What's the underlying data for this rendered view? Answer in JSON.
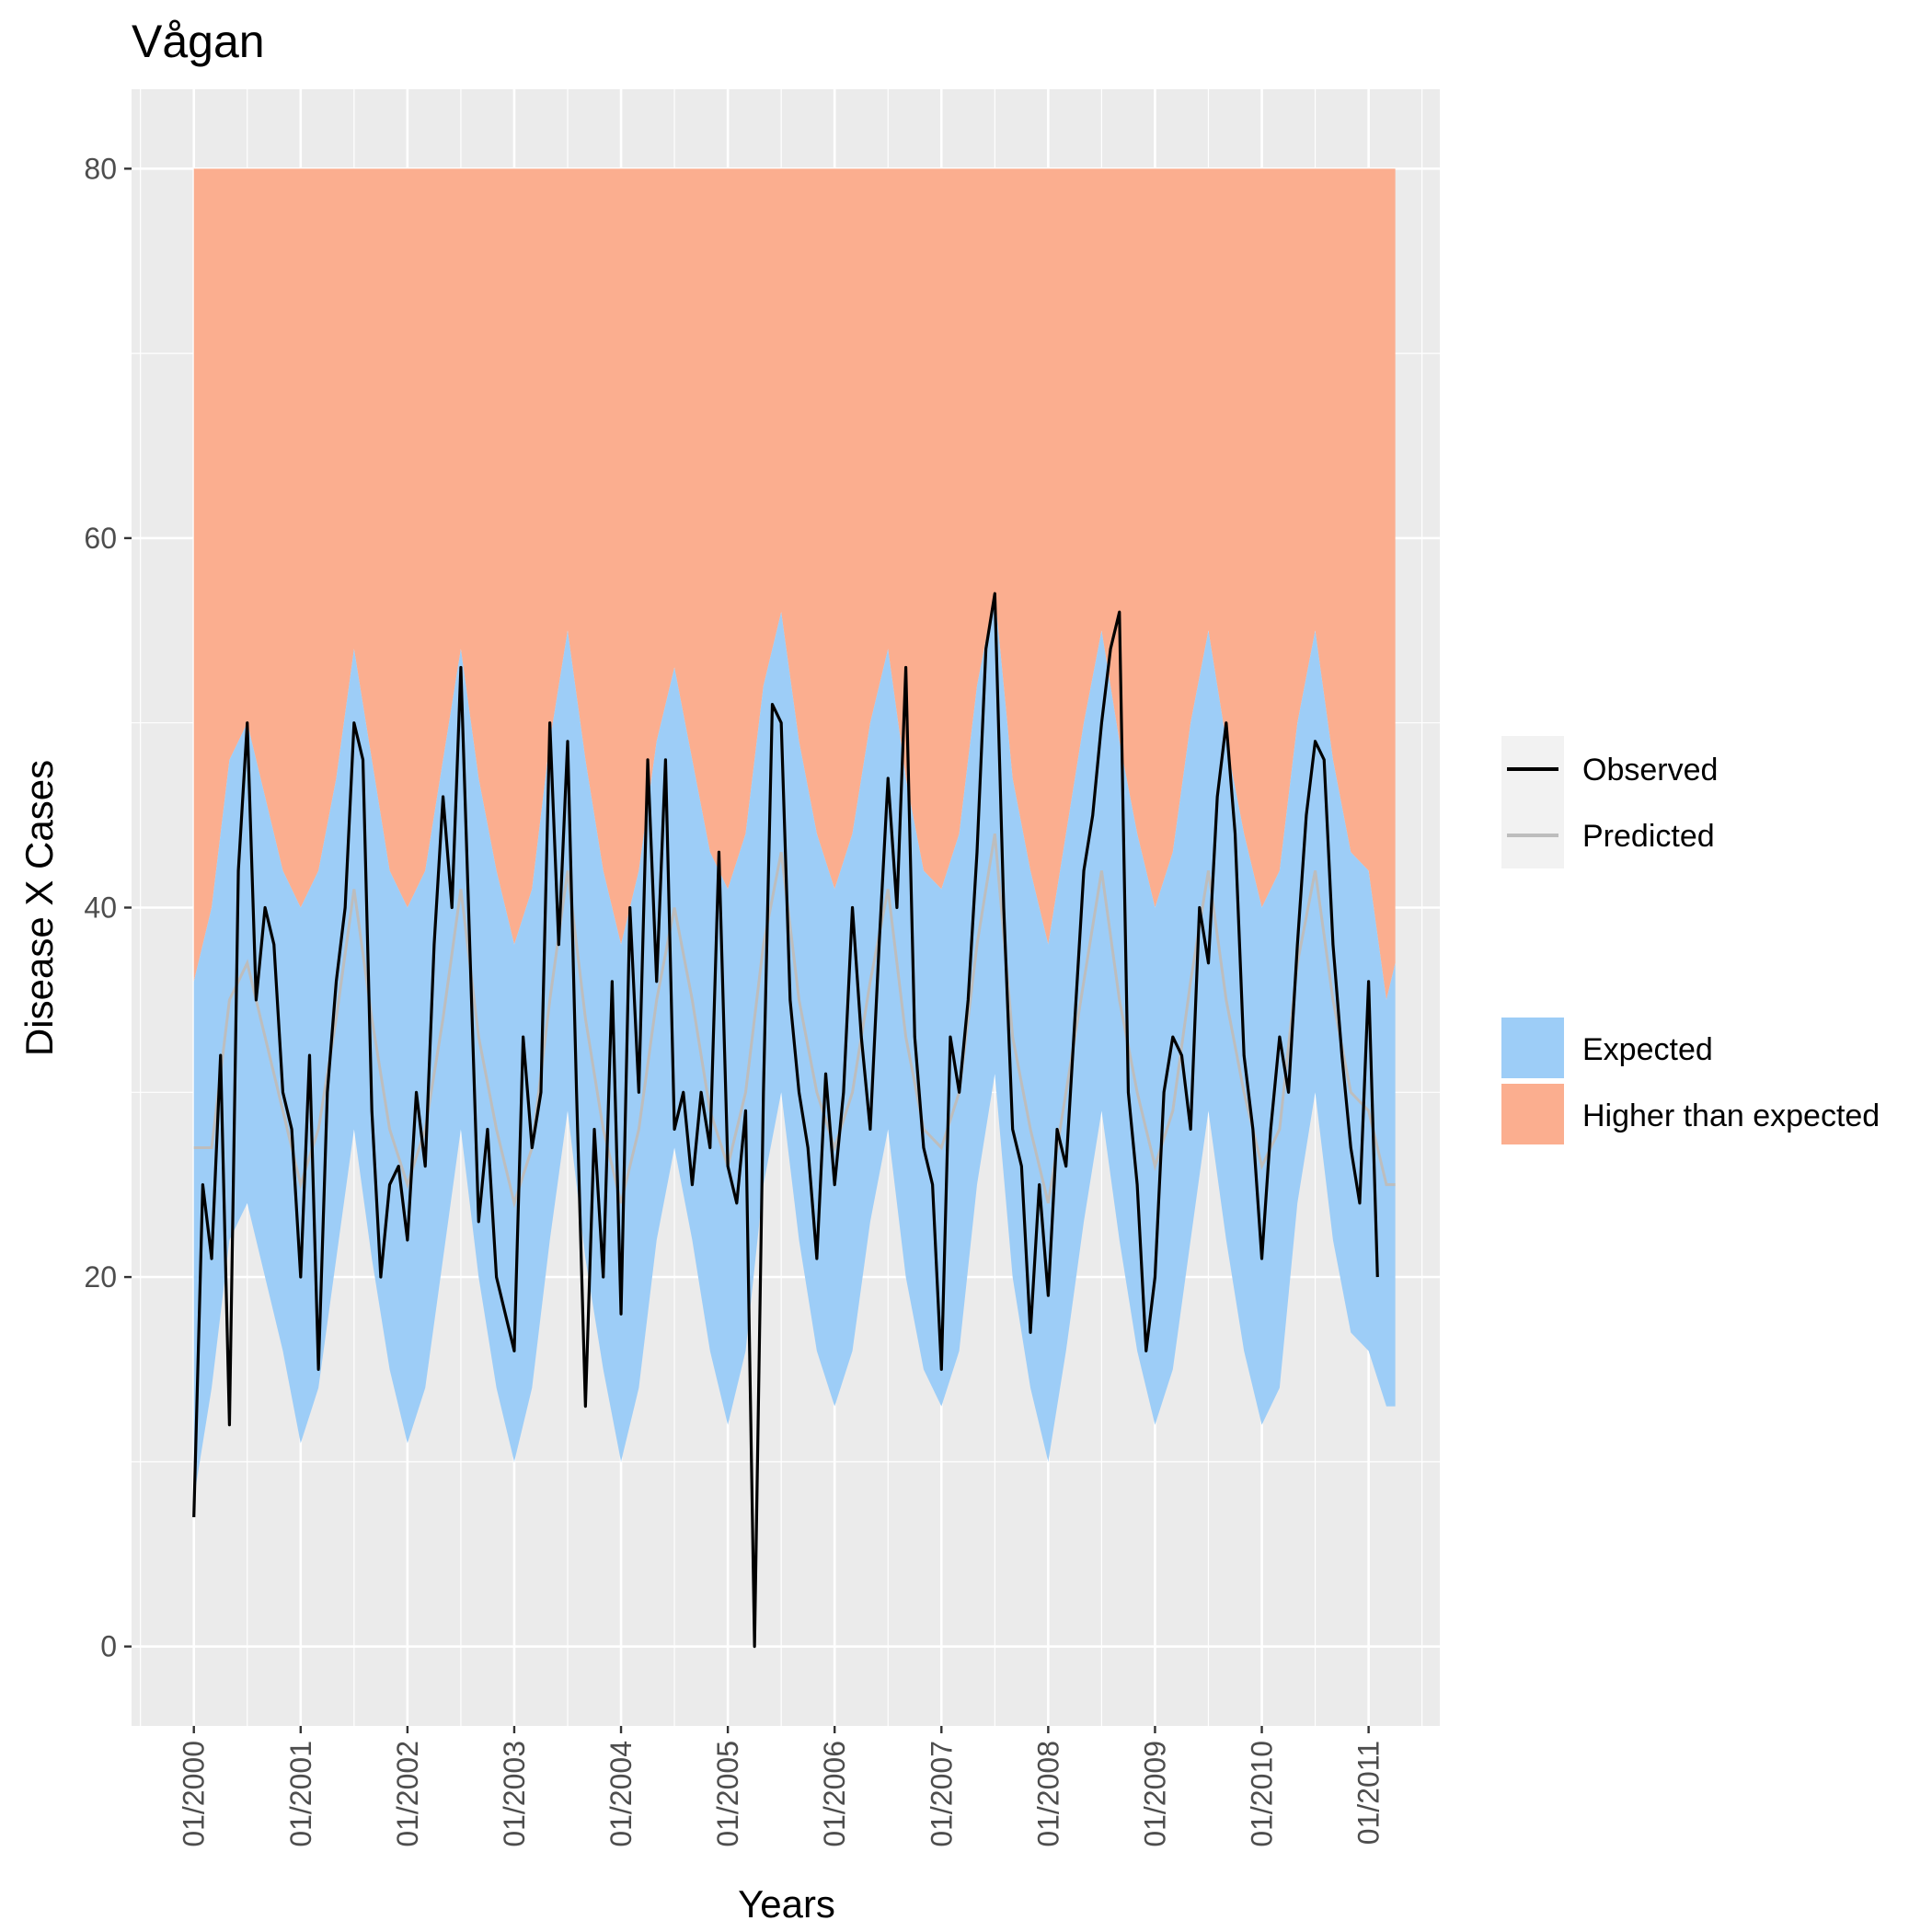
{
  "chart_data": {
    "type": "line",
    "title": "Vågan",
    "xlabel": "Years",
    "ylabel": "Disease X Cases",
    "ylim": [
      -4.3,
      84.3
    ],
    "y_ticks": [
      0,
      20,
      40,
      60,
      80
    ],
    "x_range": [
      "1999-06",
      "2011-09"
    ],
    "x_ticks": [
      {
        "date": "2000-01",
        "label": "01/2000"
      },
      {
        "date": "2001-01",
        "label": "01/2001"
      },
      {
        "date": "2002-01",
        "label": "01/2002"
      },
      {
        "date": "2003-01",
        "label": "01/2003"
      },
      {
        "date": "2004-01",
        "label": "01/2004"
      },
      {
        "date": "2005-01",
        "label": "01/2005"
      },
      {
        "date": "2006-01",
        "label": "01/2006"
      },
      {
        "date": "2007-01",
        "label": "01/2007"
      },
      {
        "date": "2008-01",
        "label": "01/2008"
      },
      {
        "date": "2009-01",
        "label": "01/2009"
      },
      {
        "date": "2010-01",
        "label": "01/2010"
      },
      {
        "date": "2011-01",
        "label": "01/2011"
      }
    ],
    "grid": true,
    "legend_position": "right",
    "colors": {
      "observed": "#000000",
      "predicted": "#bdbdbd",
      "expected": "#9dcdf7",
      "higher": "#fbae8f",
      "panel": "#ebebeb",
      "grid": "#ffffff"
    },
    "bands": {
      "higher_than_expected_upper": 80,
      "dates": [
        "2000-01",
        "2000-03",
        "2000-05",
        "2000-07",
        "2000-09",
        "2000-11",
        "2001-01",
        "2001-03",
        "2001-05",
        "2001-07",
        "2001-09",
        "2001-11",
        "2002-01",
        "2002-03",
        "2002-05",
        "2002-07",
        "2002-09",
        "2002-11",
        "2003-01",
        "2003-03",
        "2003-05",
        "2003-07",
        "2003-09",
        "2003-11",
        "2004-01",
        "2004-03",
        "2004-05",
        "2004-07",
        "2004-09",
        "2004-11",
        "2005-01",
        "2005-03",
        "2005-05",
        "2005-07",
        "2005-09",
        "2005-11",
        "2006-01",
        "2006-03",
        "2006-05",
        "2006-07",
        "2006-09",
        "2006-11",
        "2007-01",
        "2007-03",
        "2007-05",
        "2007-07",
        "2007-09",
        "2007-11",
        "2008-01",
        "2008-03",
        "2008-05",
        "2008-07",
        "2008-09",
        "2008-11",
        "2009-01",
        "2009-03",
        "2009-05",
        "2009-07",
        "2009-09",
        "2009-11",
        "2010-01",
        "2010-03",
        "2010-05",
        "2010-07",
        "2010-09",
        "2010-11",
        "2011-01",
        "2011-03",
        "2011-04"
      ],
      "expected_upper": [
        36,
        40,
        48,
        50,
        46,
        42,
        40,
        42,
        47,
        54,
        48,
        42,
        40,
        42,
        48,
        54,
        47,
        42,
        38,
        41,
        49,
        55,
        48,
        42,
        38,
        42,
        49,
        53,
        48,
        43,
        41,
        44,
        52,
        56,
        49,
        44,
        41,
        44,
        50,
        54,
        47,
        42,
        41,
        44,
        52,
        57,
        47,
        42,
        38,
        44,
        50,
        55,
        49,
        44,
        40,
        43,
        50,
        55,
        49,
        44,
        40,
        42,
        50,
        55,
        48,
        43,
        42,
        35,
        37
      ],
      "expected_lower": [
        8,
        14,
        22,
        24,
        20,
        16,
        11,
        14,
        21,
        28,
        21,
        15,
        11,
        14,
        21,
        28,
        20,
        14,
        10,
        14,
        22,
        29,
        21,
        15,
        10,
        14,
        22,
        27,
        22,
        16,
        12,
        16,
        25,
        30,
        22,
        16,
        13,
        16,
        23,
        28,
        20,
        15,
        13,
        16,
        25,
        31,
        20,
        14,
        10,
        16,
        23,
        29,
        22,
        16,
        12,
        15,
        22,
        29,
        22,
        16,
        12,
        14,
        24,
        30,
        22,
        17,
        16,
        13,
        13
      ]
    },
    "series": [
      {
        "name": "Observed",
        "dates": [
          "2000-01",
          "2000-02",
          "2000-03",
          "2000-04",
          "2000-05",
          "2000-06",
          "2000-07",
          "2000-08",
          "2000-09",
          "2000-10",
          "2000-11",
          "2000-12",
          "2001-01",
          "2001-02",
          "2001-03",
          "2001-04",
          "2001-05",
          "2001-06",
          "2001-07",
          "2001-08",
          "2001-09",
          "2001-10",
          "2001-11",
          "2001-12",
          "2002-01",
          "2002-02",
          "2002-03",
          "2002-04",
          "2002-05",
          "2002-06",
          "2002-07",
          "2002-08",
          "2002-09",
          "2002-10",
          "2002-11",
          "2002-12",
          "2003-01",
          "2003-02",
          "2003-03",
          "2003-04",
          "2003-05",
          "2003-06",
          "2003-07",
          "2003-08",
          "2003-09",
          "2003-10",
          "2003-11",
          "2003-12",
          "2004-01",
          "2004-02",
          "2004-03",
          "2004-04",
          "2004-05",
          "2004-06",
          "2004-07",
          "2004-08",
          "2004-09",
          "2004-10",
          "2004-11",
          "2004-12",
          "2005-01",
          "2005-02",
          "2005-03",
          "2005-04",
          "2005-05",
          "2005-06",
          "2005-07",
          "2005-08",
          "2005-09",
          "2005-10",
          "2005-11",
          "2005-12",
          "2006-01",
          "2006-02",
          "2006-03",
          "2006-04",
          "2006-05",
          "2006-06",
          "2006-07",
          "2006-08",
          "2006-09",
          "2006-10",
          "2006-11",
          "2006-12",
          "2007-01",
          "2007-02",
          "2007-03",
          "2007-04",
          "2007-05",
          "2007-06",
          "2007-07",
          "2007-08",
          "2007-09",
          "2007-10",
          "2007-11",
          "2007-12",
          "2008-01",
          "2008-02",
          "2008-03",
          "2008-04",
          "2008-05",
          "2008-06",
          "2008-07",
          "2008-08",
          "2008-09",
          "2008-10",
          "2008-11",
          "2008-12",
          "2009-01",
          "2009-02",
          "2009-03",
          "2009-04",
          "2009-05",
          "2009-06",
          "2009-07",
          "2009-08",
          "2009-09",
          "2009-10",
          "2009-11",
          "2009-12",
          "2010-01",
          "2010-02",
          "2010-03",
          "2010-04",
          "2010-05",
          "2010-06",
          "2010-07",
          "2010-08",
          "2010-09",
          "2010-10",
          "2010-11",
          "2010-12",
          "2011-01",
          "2011-02"
        ],
        "values": [
          7,
          25,
          21,
          32,
          12,
          42,
          50,
          35,
          40,
          38,
          30,
          28,
          20,
          32,
          15,
          30,
          36,
          40,
          50,
          48,
          29,
          20,
          25,
          26,
          22,
          30,
          26,
          38,
          46,
          40,
          53,
          38,
          23,
          28,
          20,
          18,
          16,
          33,
          27,
          30,
          50,
          38,
          49,
          30,
          13,
          28,
          20,
          36,
          18,
          40,
          30,
          48,
          36,
          48,
          28,
          30,
          25,
          30,
          27,
          43,
          26,
          24,
          29,
          0,
          30,
          51,
          50,
          35,
          30,
          27,
          21,
          31,
          25,
          30,
          40,
          33,
          28,
          38,
          47,
          40,
          53,
          33,
          27,
          25,
          15,
          33,
          30,
          35,
          43,
          54,
          57,
          40,
          28,
          26,
          17,
          25,
          19,
          28,
          26,
          34,
          42,
          45,
          50,
          54,
          56,
          30,
          25,
          16,
          20,
          30,
          33,
          32,
          28,
          40,
          37,
          46,
          50,
          44,
          32,
          28,
          21,
          28,
          33,
          30,
          38,
          45,
          49,
          48,
          38,
          32,
          27,
          24,
          36,
          20
        ]
      },
      {
        "name": "Predicted",
        "dates": [
          "2000-01",
          "2000-03",
          "2000-05",
          "2000-07",
          "2000-09",
          "2000-11",
          "2001-01",
          "2001-03",
          "2001-05",
          "2001-07",
          "2001-09",
          "2001-11",
          "2002-01",
          "2002-03",
          "2002-05",
          "2002-07",
          "2002-09",
          "2002-11",
          "2003-01",
          "2003-03",
          "2003-05",
          "2003-07",
          "2003-09",
          "2003-11",
          "2004-01",
          "2004-03",
          "2004-05",
          "2004-07",
          "2004-09",
          "2004-11",
          "2005-01",
          "2005-03",
          "2005-05",
          "2005-07",
          "2005-09",
          "2005-11",
          "2006-01",
          "2006-03",
          "2006-05",
          "2006-07",
          "2006-09",
          "2006-11",
          "2007-01",
          "2007-03",
          "2007-05",
          "2007-07",
          "2007-09",
          "2007-11",
          "2008-01",
          "2008-03",
          "2008-05",
          "2008-07",
          "2008-09",
          "2008-11",
          "2009-01",
          "2009-03",
          "2009-05",
          "2009-07",
          "2009-09",
          "2009-11",
          "2010-01",
          "2010-03",
          "2010-05",
          "2010-07",
          "2010-09",
          "2010-11",
          "2011-01",
          "2011-03",
          "2011-04"
        ],
        "values": [
          27,
          27,
          35,
          37,
          33,
          29,
          25,
          28,
          34,
          41,
          34,
          28,
          25,
          28,
          34,
          41,
          33,
          28,
          24,
          27,
          35,
          42,
          34,
          28,
          24,
          28,
          35,
          40,
          35,
          29,
          26,
          30,
          38,
          43,
          35,
          30,
          27,
          30,
          36,
          41,
          33,
          28,
          27,
          30,
          38,
          44,
          33,
          28,
          24,
          30,
          36,
          42,
          35,
          30,
          26,
          29,
          36,
          42,
          35,
          30,
          26,
          28,
          37,
          42,
          35,
          30,
          29,
          25,
          25
        ]
      }
    ],
    "legend": [
      {
        "key": "observed",
        "label": "Observed"
      },
      {
        "key": "predicted",
        "label": "Predicted"
      },
      {
        "key": "expected",
        "label": "Expected"
      },
      {
        "key": "higher",
        "label": "Higher than expected"
      }
    ]
  }
}
